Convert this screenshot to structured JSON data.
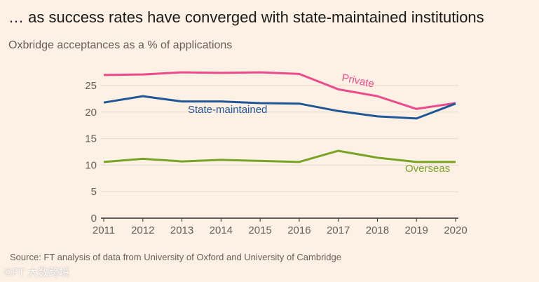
{
  "title": "… as success rates have converged with state-maintained institutions",
  "subtitle": "Oxbridge acceptances as a % of applications",
  "source": "Source: FT analysis of data from University of Oxford and University of Cambridge",
  "watermark": "©FT 大数跨境",
  "chart_data": {
    "type": "line",
    "title": "… as success rates have converged with state-maintained institutions",
    "subtitle": "Oxbridge acceptances as a % of applications",
    "xlabel": "",
    "ylabel": "",
    "x": [
      2011,
      2012,
      2013,
      2014,
      2015,
      2016,
      2017,
      2018,
      2019,
      2020
    ],
    "ylim": [
      0,
      28
    ],
    "yticks": [
      0,
      5,
      10,
      15,
      20,
      25
    ],
    "grid": true,
    "series": [
      {
        "name": "Private",
        "color": "#ec4a8a",
        "values": [
          27.0,
          27.1,
          27.5,
          27.4,
          27.5,
          27.2,
          24.3,
          23.0,
          20.6,
          21.7
        ]
      },
      {
        "name": "State-maintained",
        "color": "#1f5797",
        "values": [
          21.8,
          23.0,
          22.0,
          22.0,
          21.7,
          21.6,
          20.2,
          19.2,
          18.8,
          21.6
        ]
      },
      {
        "name": "Overseas",
        "color": "#79a325",
        "values": [
          10.6,
          11.2,
          10.7,
          11.0,
          10.8,
          10.6,
          12.7,
          11.4,
          10.6,
          10.6
        ]
      }
    ]
  }
}
